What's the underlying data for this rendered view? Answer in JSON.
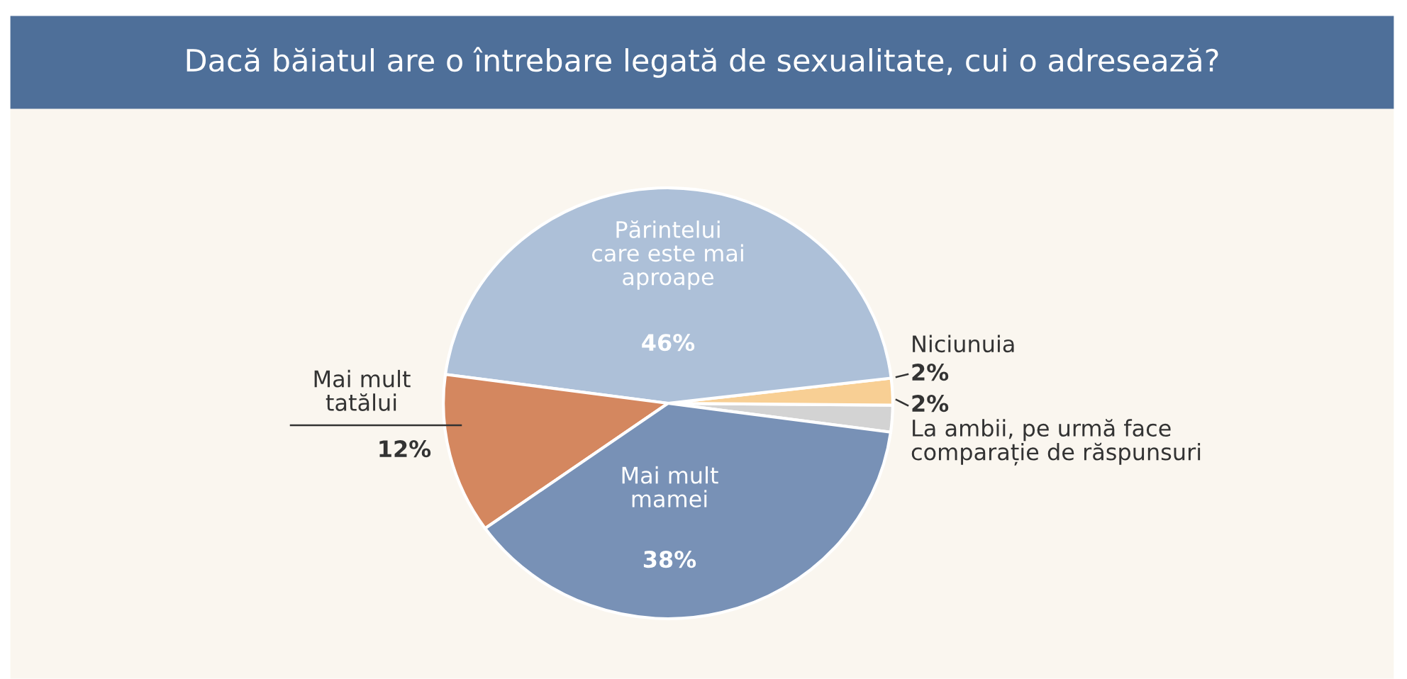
{
  "chart_data": {
    "type": "pie",
    "title": "Dacă băiatul are o întrebare legată de sexualitate, cui o adresează?",
    "categories": [
      "La ambii, pe urmă face comparație de răspunsuri",
      "Niciunuia",
      "Părintelui care este mai aproape",
      "Mai mult tatălui",
      "Mai mult mamei"
    ],
    "values": [
      2,
      2,
      46,
      12,
      38
    ],
    "colors": [
      "#d3d3d3",
      "#f8cf94",
      "#adc0d8",
      "#d4875f",
      "#7891b6"
    ],
    "value_labels": [
      "2%",
      "2%",
      "46%",
      "12%",
      "38%"
    ],
    "legend": false
  }
}
